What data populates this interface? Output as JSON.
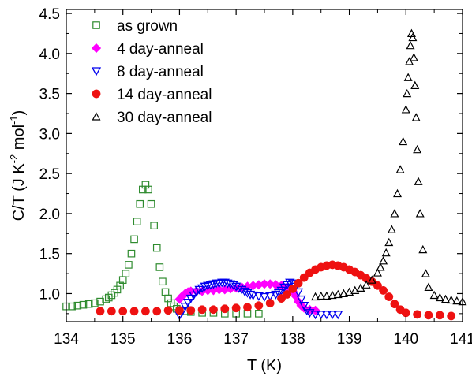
{
  "chart_data": {
    "type": "scatter",
    "xlabel": "T (K)",
    "ylabel": "C/T (J K$-2$ mol$-1$)",
    "ylabel_parts": [
      "C/T (J K",
      "-2",
      " mol",
      "-1",
      ")"
    ],
    "xlim": [
      134,
      141
    ],
    "ylim": [
      0.65,
      4.55
    ],
    "xticks": [
      134,
      135,
      136,
      137,
      138,
      139,
      140,
      141
    ],
    "yticks": [
      1.0,
      1.5,
      2.0,
      2.5,
      3.0,
      3.5,
      4.0,
      4.5
    ],
    "ytick_labels": [
      "1.0",
      "1.5",
      "2.0",
      "2.5",
      "3.0",
      "3.5",
      "4.0",
      "4.5"
    ],
    "legend_position": "top-left",
    "series": [
      {
        "name": "as grown",
        "marker": "open-square",
        "color": "#2e8b2e",
        "x": [
          134.0,
          134.1,
          134.2,
          134.3,
          134.4,
          134.5,
          134.6,
          134.7,
          134.75,
          134.8,
          134.85,
          134.9,
          134.95,
          135.0,
          135.05,
          135.1,
          135.15,
          135.2,
          135.25,
          135.3,
          135.35,
          135.4,
          135.45,
          135.5,
          135.55,
          135.6,
          135.65,
          135.7,
          135.75,
          135.8,
          135.85,
          135.9,
          135.95,
          136.0,
          136.1,
          136.2,
          136.4,
          136.6,
          136.8,
          137.0,
          137.2,
          137.4
        ],
        "y": [
          0.84,
          0.84,
          0.85,
          0.86,
          0.87,
          0.88,
          0.9,
          0.93,
          0.95,
          0.98,
          1.01,
          1.05,
          1.1,
          1.17,
          1.25,
          1.36,
          1.5,
          1.68,
          1.9,
          2.12,
          2.3,
          2.36,
          2.3,
          2.12,
          1.85,
          1.57,
          1.33,
          1.15,
          1.02,
          0.94,
          0.88,
          0.84,
          0.81,
          0.79,
          0.78,
          0.77,
          0.76,
          0.76,
          0.75,
          0.75,
          0.75,
          0.75
        ]
      },
      {
        "name": "4 day-anneal",
        "marker": "filled-diamond",
        "color": "#ff00ff",
        "x": [
          136.0,
          136.05,
          136.1,
          136.15,
          136.2,
          136.3,
          136.4,
          136.5,
          136.6,
          136.7,
          136.8,
          136.9,
          137.0,
          137.1,
          137.2,
          137.3,
          137.4,
          137.5,
          137.6,
          137.7,
          137.8,
          137.9,
          138.0,
          138.05,
          138.1,
          138.15,
          138.2,
          138.3,
          138.4
        ],
        "y": [
          0.93,
          0.97,
          1.0,
          1.02,
          1.03,
          1.03,
          1.03,
          1.04,
          1.04,
          1.05,
          1.05,
          1.06,
          1.07,
          1.08,
          1.09,
          1.1,
          1.11,
          1.12,
          1.12,
          1.11,
          1.1,
          1.08,
          1.03,
          0.97,
          0.9,
          0.85,
          0.82,
          0.8,
          0.79
        ]
      },
      {
        "name": "8 day-anneal",
        "marker": "open-triangle-down",
        "color": "#0000ee",
        "x": [
          136.0,
          136.05,
          136.1,
          136.15,
          136.2,
          136.25,
          136.3,
          136.35,
          136.4,
          136.45,
          136.5,
          136.55,
          136.6,
          136.65,
          136.7,
          136.75,
          136.8,
          136.85,
          136.9,
          136.95,
          137.0,
          137.05,
          137.1,
          137.15,
          137.2,
          137.25,
          137.3,
          137.4,
          137.5,
          137.6,
          137.7,
          137.75,
          137.8,
          137.85,
          137.9,
          137.95,
          138.0,
          138.05,
          138.1,
          138.15,
          138.2,
          138.25,
          138.3,
          138.4,
          138.5,
          138.6,
          138.7,
          138.8
        ],
        "y": [
          0.73,
          0.78,
          0.84,
          0.89,
          0.94,
          0.98,
          1.02,
          1.05,
          1.07,
          1.09,
          1.1,
          1.11,
          1.12,
          1.13,
          1.13,
          1.14,
          1.14,
          1.13,
          1.12,
          1.11,
          1.09,
          1.07,
          1.05,
          1.03,
          1.01,
          0.99,
          0.98,
          0.97,
          0.96,
          0.97,
          0.99,
          1.01,
          1.04,
          1.08,
          1.11,
          1.14,
          1.13,
          1.09,
          1.02,
          0.93,
          0.85,
          0.79,
          0.76,
          0.74,
          0.74,
          0.74,
          0.74,
          0.74
        ]
      },
      {
        "name": "14 day-anneal",
        "marker": "filled-circle",
        "color": "#ee1111",
        "x": [
          134.6,
          134.8,
          135.0,
          135.2,
          135.4,
          135.6,
          135.8,
          136.0,
          136.2,
          136.4,
          136.6,
          136.8,
          137.0,
          137.2,
          137.4,
          137.6,
          137.8,
          137.9,
          138.0,
          138.1,
          138.2,
          138.3,
          138.4,
          138.5,
          138.6,
          138.7,
          138.8,
          138.9,
          139.0,
          139.1,
          139.2,
          139.3,
          139.4,
          139.5,
          139.6,
          139.7,
          139.8,
          139.9,
          140.0,
          140.2,
          140.4,
          140.6,
          140.8
        ],
        "y": [
          0.78,
          0.78,
          0.78,
          0.78,
          0.78,
          0.78,
          0.79,
          0.79,
          0.79,
          0.8,
          0.8,
          0.81,
          0.82,
          0.83,
          0.85,
          0.88,
          0.94,
          0.99,
          1.06,
          1.13,
          1.2,
          1.26,
          1.3,
          1.33,
          1.35,
          1.36,
          1.35,
          1.33,
          1.3,
          1.27,
          1.23,
          1.19,
          1.15,
          1.1,
          1.04,
          0.96,
          0.87,
          0.8,
          0.76,
          0.74,
          0.73,
          0.73,
          0.72
        ]
      },
      {
        "name": "30 day-anneal",
        "marker": "open-triangle-up",
        "color": "#000000",
        "x": [
          138.4,
          138.5,
          138.6,
          138.7,
          138.8,
          138.9,
          139.0,
          139.1,
          139.2,
          139.3,
          139.4,
          139.5,
          139.55,
          139.6,
          139.65,
          139.7,
          139.75,
          139.8,
          139.85,
          139.9,
          139.95,
          140.0,
          140.02,
          140.04,
          140.06,
          140.08,
          140.1,
          140.12,
          140.14,
          140.16,
          140.18,
          140.2,
          140.22,
          140.25,
          140.3,
          140.35,
          140.4,
          140.5,
          140.6,
          140.7,
          140.8,
          140.9,
          141.0
        ],
        "y": [
          0.96,
          0.97,
          0.97,
          0.98,
          0.99,
          1.0,
          1.02,
          1.04,
          1.07,
          1.11,
          1.17,
          1.26,
          1.33,
          1.41,
          1.51,
          1.64,
          1.8,
          2.0,
          2.25,
          2.55,
          2.9,
          3.3,
          3.5,
          3.7,
          3.9,
          4.1,
          4.25,
          4.2,
          3.95,
          3.6,
          3.2,
          2.8,
          2.4,
          2.0,
          1.55,
          1.25,
          1.08,
          0.98,
          0.95,
          0.93,
          0.92,
          0.91,
          0.9
        ]
      }
    ]
  }
}
